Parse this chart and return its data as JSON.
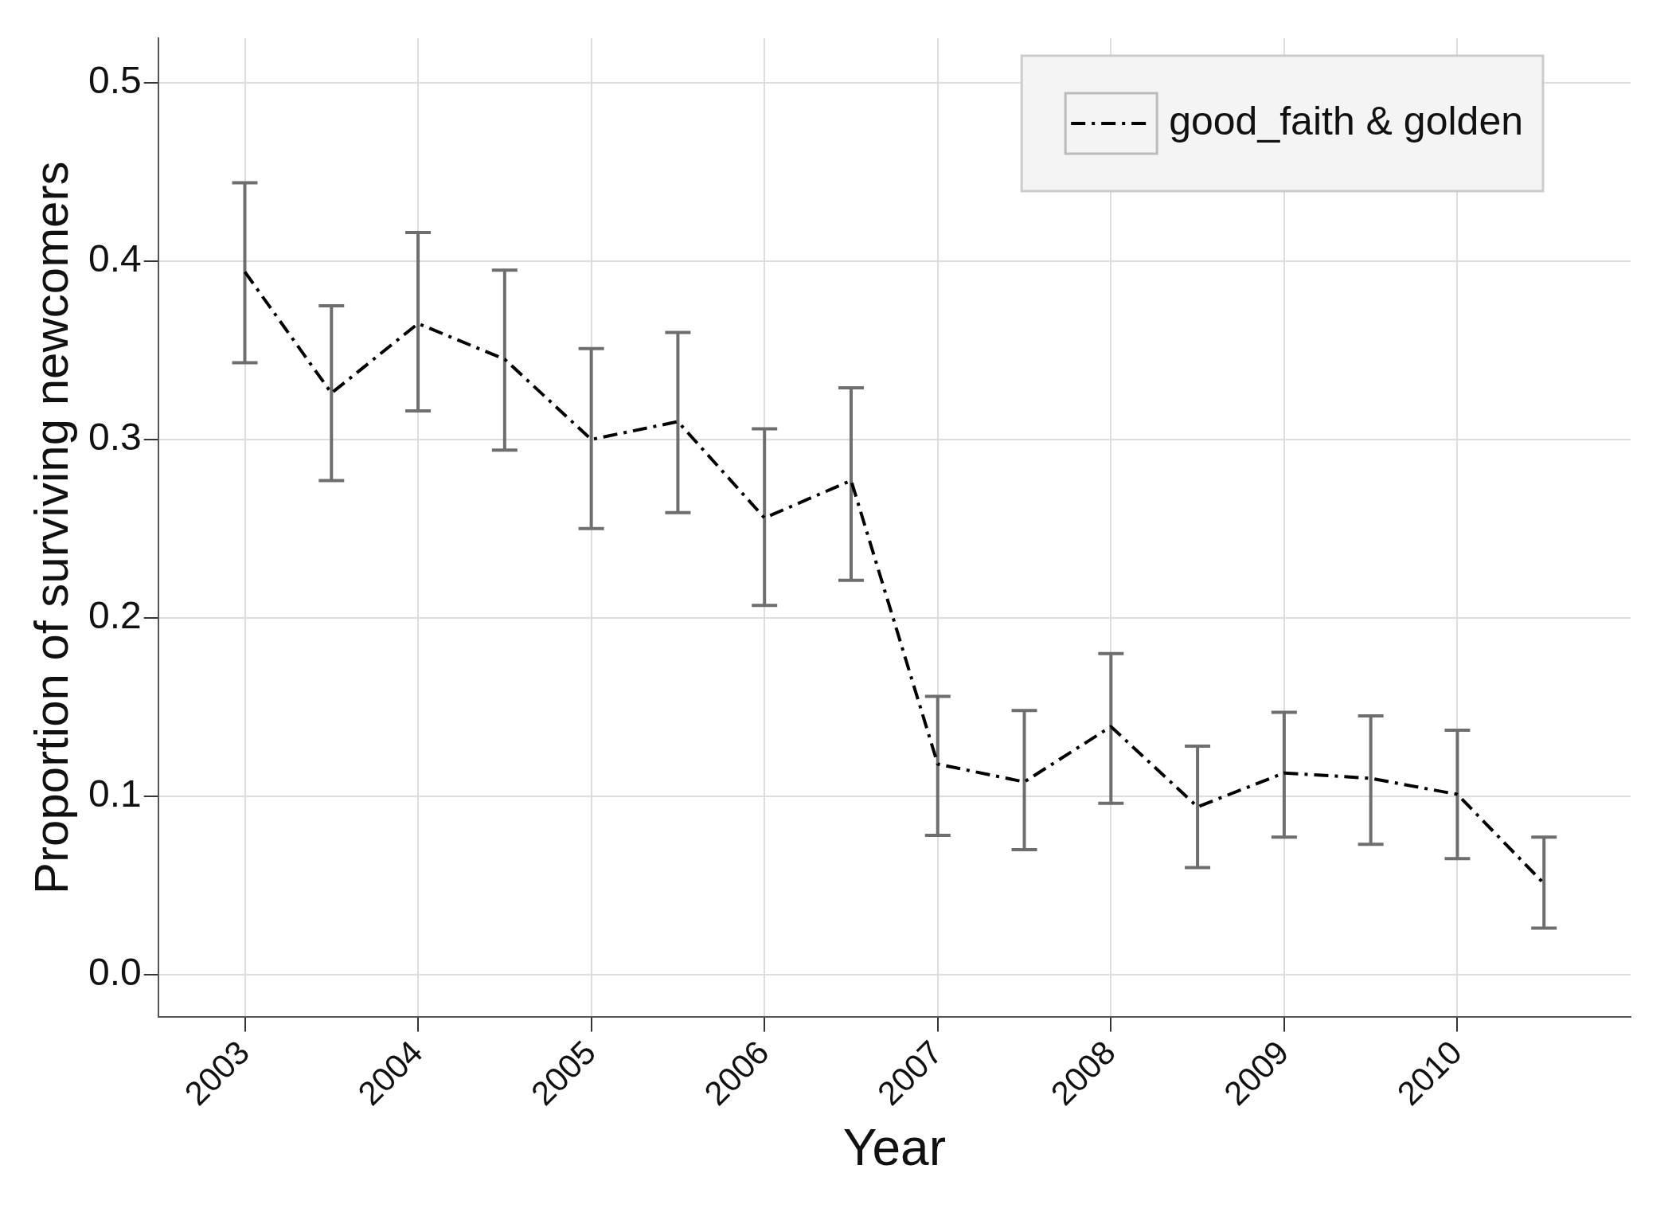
{
  "chart_data": {
    "type": "line",
    "xlabel": "Year",
    "ylabel": "Proportion of surviving newcomers",
    "x": [
      2003,
      2003.5,
      2004,
      2004.5,
      2005,
      2005.5,
      2006,
      2006.5,
      2007,
      2007.5,
      2008,
      2008.5,
      2009,
      2009.5,
      2010,
      2010.5
    ],
    "series": [
      {
        "name": "good_faith & golden",
        "color": "#000000",
        "line_style": "dashed",
        "values": [
          0.394,
          0.326,
          0.365,
          0.345,
          0.3,
          0.31,
          0.256,
          0.277,
          0.118,
          0.108,
          0.139,
          0.094,
          0.113,
          0.11,
          0.101,
          0.051
        ],
        "errors": [
          [
            0.343,
            0.444
          ],
          [
            0.277,
            0.375
          ],
          [
            0.316,
            0.416
          ],
          [
            0.294,
            0.395
          ],
          [
            0.25,
            0.351
          ],
          [
            0.259,
            0.36
          ],
          [
            0.207,
            0.306
          ],
          [
            0.221,
            0.329
          ],
          [
            0.078,
            0.156
          ],
          [
            0.07,
            0.148
          ],
          [
            0.096,
            0.18
          ],
          [
            0.06,
            0.128
          ],
          [
            0.077,
            0.147
          ],
          [
            0.073,
            0.145
          ],
          [
            0.065,
            0.137
          ],
          [
            0.026,
            0.077
          ]
        ]
      }
    ],
    "xlim": [
      2002.5,
      2011
    ],
    "xticks": [
      2003,
      2004,
      2005,
      2006,
      2007,
      2008,
      2009,
      2010
    ],
    "ylim": [
      -0.024,
      0.525
    ],
    "yticks": [
      {
        "value": 0,
        "label": "0.0"
      },
      0.1,
      0.2,
      0.3,
      0.4,
      0.5
    ],
    "grid": true,
    "legend": "top right",
    "marker": "none"
  }
}
